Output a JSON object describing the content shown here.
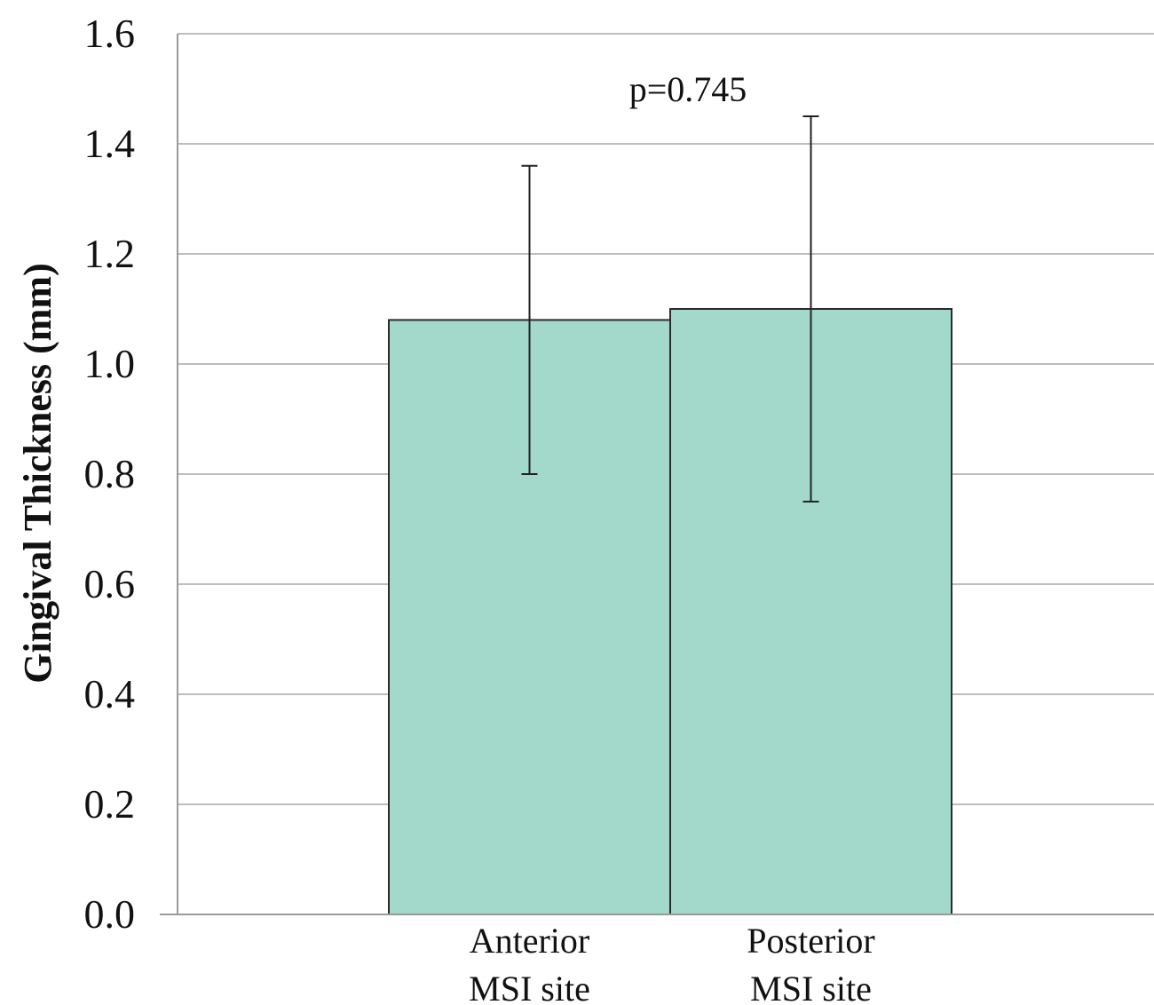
{
  "chart_data": {
    "type": "bar",
    "categories": [
      [
        "Anterior",
        "MSI site"
      ],
      [
        "Posterior",
        "MSI site"
      ]
    ],
    "values": [
      1.08,
      1.1
    ],
    "error_bars": [
      {
        "low": 0.8,
        "high": 1.36
      },
      {
        "low": 0.75,
        "high": 1.45
      }
    ],
    "ylabel": "Gingival Thickness (mm)",
    "xlabel": "",
    "ylim": [
      0,
      1.6
    ],
    "yticks": [
      "0.0",
      "0.2",
      "0.4",
      "0.6",
      "0.8",
      "1.0",
      "1.2",
      "1.4",
      "1.6"
    ],
    "annotation": "p=0.745",
    "grid": true,
    "legend": "none",
    "colors": {
      "bar": "#a3d9cb",
      "bar_edge": "#2b2b2b",
      "grid": "#bdbdbd",
      "axis": "#9a9a9a"
    }
  }
}
